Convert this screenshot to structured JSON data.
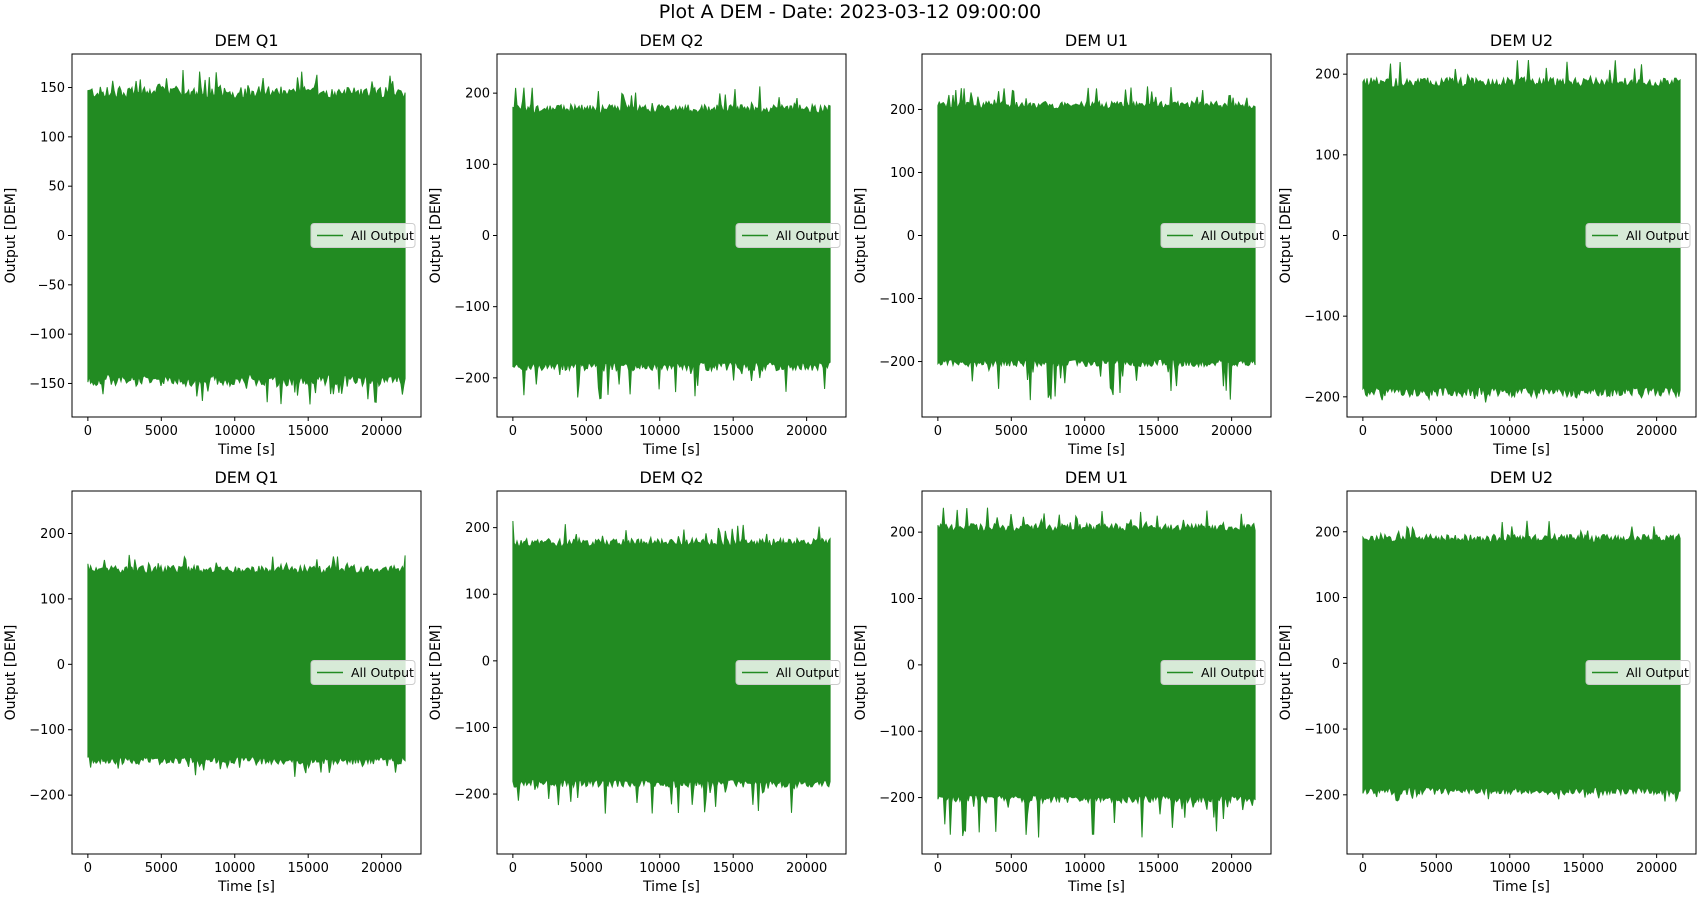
{
  "figure": {
    "title": "Plot A DEM - Date: 2023-03-12 09:00:00"
  },
  "colors": {
    "line": "#228b22",
    "axes": "#000000",
    "legend_bg": "#ffffff"
  },
  "chart_data": [
    {
      "type": "line",
      "panel": "row1-col1",
      "title": "DEM Q1",
      "xlabel": "Time [s]",
      "ylabel": "Output [DEM]",
      "xlim": [
        -1080,
        22680
      ],
      "ylim": [
        -184,
        184
      ],
      "xticks": [
        0,
        5000,
        10000,
        15000,
        20000
      ],
      "yticks": [
        -150,
        -100,
        -50,
        0,
        50,
        100,
        150
      ],
      "legend": "center right",
      "series": [
        {
          "name": "All Output",
          "color": "#228b22",
          "x_range": [
            0,
            21600
          ],
          "envelope_upper": 143,
          "envelope_lower": -145,
          "peak_max": 168,
          "peak_min": -172
        }
      ]
    },
    {
      "type": "line",
      "panel": "row1-col2",
      "title": "DEM Q2",
      "xlabel": "Time [s]",
      "ylabel": "Output [DEM]",
      "xlim": [
        -1080,
        22680
      ],
      "ylim": [
        -255,
        255
      ],
      "xticks": [
        0,
        5000,
        10000,
        15000,
        20000
      ],
      "yticks": [
        -200,
        -100,
        0,
        100,
        200
      ],
      "legend": "center right",
      "series": [
        {
          "name": "All Output",
          "color": "#228b22",
          "x_range": [
            0,
            21600
          ],
          "envelope_upper": 176,
          "envelope_lower": -182,
          "peak_max": 210,
          "peak_min": -232
        }
      ]
    },
    {
      "type": "line",
      "panel": "row1-col3",
      "title": "DEM U1",
      "xlabel": "Time [s]",
      "ylabel": "Output [DEM]",
      "xlim": [
        -1080,
        22680
      ],
      "ylim": [
        -288,
        288
      ],
      "xticks": [
        0,
        5000,
        10000,
        15000,
        20000
      ],
      "yticks": [
        -200,
        -100,
        0,
        100,
        200
      ],
      "legend": "center right",
      "series": [
        {
          "name": "All Output",
          "color": "#228b22",
          "x_range": [
            0,
            21600
          ],
          "envelope_upper": 205,
          "envelope_lower": -200,
          "peak_max": 238,
          "peak_min": -262
        }
      ]
    },
    {
      "type": "line",
      "panel": "row1-col4",
      "title": "DEM U2",
      "xlabel": "Time [s]",
      "ylabel": "Output [DEM]",
      "xlim": [
        -1080,
        22680
      ],
      "ylim": [
        -225,
        225
      ],
      "xticks": [
        0,
        5000,
        10000,
        15000,
        20000
      ],
      "yticks": [
        -200,
        -100,
        0,
        100,
        200
      ],
      "legend": "center right",
      "series": [
        {
          "name": "All Output",
          "color": "#228b22",
          "x_range": [
            0,
            21600
          ],
          "envelope_upper": 188,
          "envelope_lower": -192,
          "peak_max": 218,
          "peak_min": -210
        }
      ]
    },
    {
      "type": "line",
      "panel": "row2-col1",
      "title": "DEM Q1",
      "xlabel": "Time [s]",
      "ylabel": "Output [DEM]",
      "xlim": [
        -1080,
        22680
      ],
      "ylim": [
        -290,
        265
      ],
      "xticks": [
        0,
        5000,
        10000,
        15000,
        20000
      ],
      "yticks": [
        -200,
        -100,
        0,
        100,
        200
      ],
      "legend": "center right",
      "series": [
        {
          "name": "All Output",
          "color": "#228b22",
          "x_range": [
            0,
            21600
          ],
          "envelope_upper": 143,
          "envelope_lower": -145,
          "peak_max": 168,
          "peak_min": -172
        }
      ]
    },
    {
      "type": "line",
      "panel": "row2-col2",
      "title": "DEM Q2",
      "xlabel": "Time [s]",
      "ylabel": "Output [DEM]",
      "xlim": [
        -1080,
        22680
      ],
      "ylim": [
        -290,
        255
      ],
      "xticks": [
        0,
        5000,
        10000,
        15000,
        20000
      ],
      "yticks": [
        -200,
        -100,
        0,
        100,
        200
      ],
      "legend": "center right",
      "series": [
        {
          "name": "All Output",
          "color": "#228b22",
          "x_range": [
            0,
            21600
          ],
          "envelope_upper": 176,
          "envelope_lower": -182,
          "peak_max": 210,
          "peak_min": -232
        }
      ]
    },
    {
      "type": "line",
      "panel": "row2-col3",
      "title": "DEM U1",
      "xlabel": "Time [s]",
      "ylabel": "Output [DEM]",
      "xlim": [
        -1080,
        22680
      ],
      "ylim": [
        -285,
        262
      ],
      "xticks": [
        0,
        5000,
        10000,
        15000,
        20000
      ],
      "yticks": [
        -200,
        -100,
        0,
        100,
        200
      ],
      "legend": "center right",
      "series": [
        {
          "name": "All Output",
          "color": "#228b22",
          "x_range": [
            0,
            21600
          ],
          "envelope_upper": 205,
          "envelope_lower": -200,
          "peak_max": 238,
          "peak_min": -262
        }
      ]
    },
    {
      "type": "line",
      "panel": "row2-col4",
      "title": "DEM U2",
      "xlabel": "Time [s]",
      "ylabel": "Output [DEM]",
      "xlim": [
        -1080,
        22680
      ],
      "ylim": [
        -290,
        262
      ],
      "xticks": [
        0,
        5000,
        10000,
        15000,
        20000
      ],
      "yticks": [
        -200,
        -100,
        0,
        100,
        200
      ],
      "legend": "center right",
      "series": [
        {
          "name": "All Output",
          "color": "#228b22",
          "x_range": [
            0,
            21600
          ],
          "envelope_upper": 188,
          "envelope_lower": -192,
          "peak_max": 218,
          "peak_min": -210
        }
      ]
    }
  ]
}
